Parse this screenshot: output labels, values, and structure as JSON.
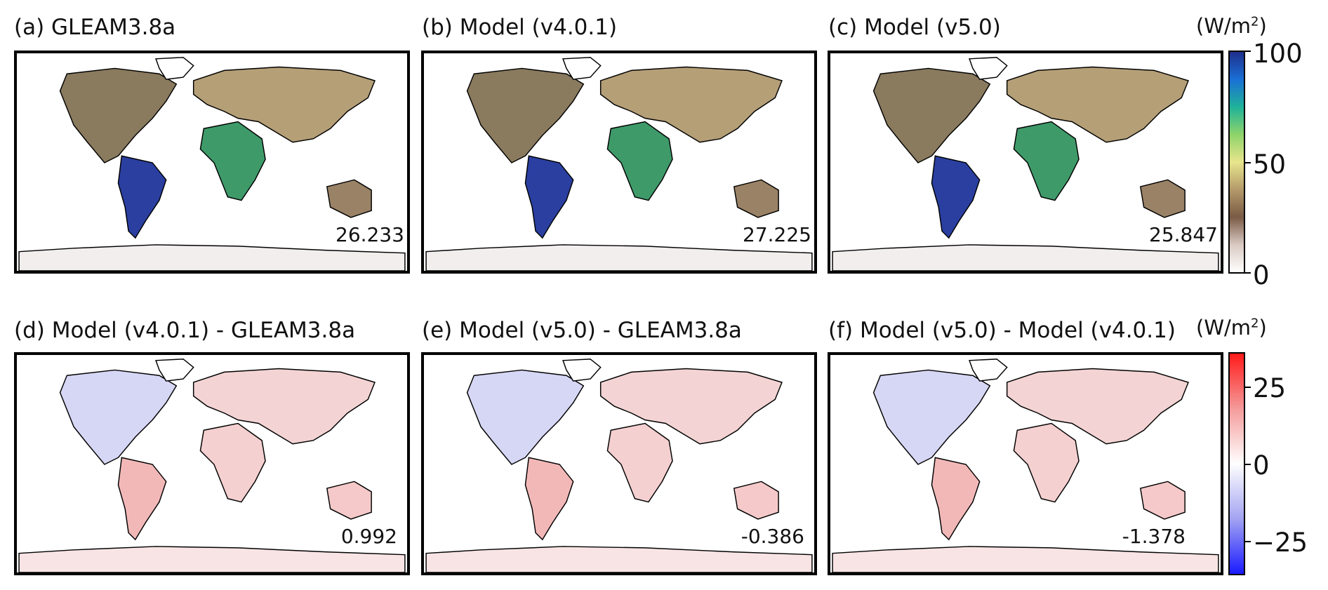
{
  "panels": [
    {
      "title": "(a) GLEAM3.8a",
      "value": "26.233",
      "kind": "abs"
    },
    {
      "title": "(b) Model (v4.0.1)",
      "value": "27.225",
      "kind": "abs"
    },
    {
      "title": "(c) Model (v5.0)",
      "value": "25.847",
      "kind": "abs"
    },
    {
      "title": "(d) Model (v4.0.1) - GLEAM3.8a",
      "value": "0.992",
      "kind": "diff"
    },
    {
      "title": "(e) Model (v5.0) - GLEAM3.8a",
      "value": "-0.386",
      "kind": "diff"
    },
    {
      "title": "(f) Model (v5.0) - Model (v4.0.1)",
      "value": "-1.378",
      "kind": "diff"
    }
  ],
  "colorbars": {
    "top": {
      "unit_base": "(W/m",
      "unit_exp": "2",
      "unit_close": ")",
      "ticks": [
        "100",
        "50",
        "0"
      ],
      "colors": [
        "#1f2f8c",
        "#1a6fd6",
        "#1fb29a",
        "#8ed36a",
        "#e8e58c",
        "#b49a6a",
        "#7a5a45",
        "#d9c9c2",
        "#ffffff"
      ]
    },
    "bottom": {
      "unit_base": "(W/m",
      "unit_exp": "2",
      "unit_close": ")",
      "ticks": [
        "25",
        "0",
        "−25"
      ],
      "colors": [
        "#ff1a1a",
        "#f59a9a",
        "#ffffff",
        "#a3a3f2",
        "#1a1aff"
      ]
    }
  }
}
